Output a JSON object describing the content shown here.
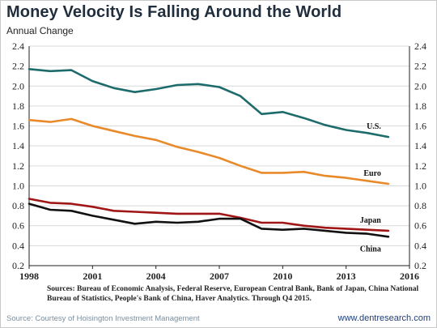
{
  "header": {
    "title": "Money Velocity Is Falling Around the World",
    "subtitle": "Annual Change"
  },
  "footer": {
    "sources": "Sources: Bureau of Economic Analysis, Federal Reserve, European Central Bank, Bank of Japan, China National Bureau of Statistics, People's Bank of China, Haver Analytics. Through Q4 2015.",
    "courtesy": "Source: Courtesy of Hoisington Investment Management",
    "site": "www.dentresearch.com"
  },
  "chart_data": {
    "type": "line",
    "x": [
      1998,
      1999,
      2000,
      2001,
      2002,
      2003,
      2004,
      2005,
      2006,
      2007,
      2008,
      2009,
      2010,
      2011,
      2012,
      2013,
      2014,
      2015
    ],
    "xticks": [
      "1998",
      "2001",
      "2004",
      "2007",
      "2010",
      "2013",
      "2016"
    ],
    "xlim": [
      1998,
      2016
    ],
    "ylim": [
      0.2,
      2.4
    ],
    "yticks": [
      "0.2",
      "0.4",
      "0.6",
      "0.8",
      "1.0",
      "1.2",
      "1.4",
      "1.6",
      "1.8",
      "2.0",
      "2.2",
      "2.4"
    ],
    "grid": true,
    "axes": "left and right",
    "series": [
      {
        "name": "U.S.",
        "color": "#1e6b6b",
        "values": [
          2.17,
          2.15,
          2.16,
          2.05,
          1.98,
          1.94,
          1.97,
          2.01,
          2.02,
          1.99,
          1.9,
          1.72,
          1.74,
          1.68,
          1.61,
          1.56,
          1.53,
          1.49
        ]
      },
      {
        "name": "Euro",
        "color": "#e88a2a",
        "values": [
          1.66,
          1.64,
          1.67,
          1.6,
          1.55,
          1.5,
          1.46,
          1.39,
          1.34,
          1.28,
          1.2,
          1.13,
          1.13,
          1.14,
          1.1,
          1.08,
          1.05,
          1.02
        ]
      },
      {
        "name": "Japan",
        "color": "#a01515",
        "values": [
          0.87,
          0.83,
          0.82,
          0.79,
          0.75,
          0.74,
          0.73,
          0.72,
          0.72,
          0.72,
          0.68,
          0.63,
          0.63,
          0.6,
          0.58,
          0.57,
          0.56,
          0.55
        ]
      },
      {
        "name": "China",
        "color": "#111111",
        "values": [
          0.82,
          0.76,
          0.75,
          0.7,
          0.66,
          0.62,
          0.64,
          0.63,
          0.64,
          0.67,
          0.67,
          0.57,
          0.56,
          0.57,
          0.55,
          0.53,
          0.52,
          0.49
        ]
      }
    ]
  }
}
